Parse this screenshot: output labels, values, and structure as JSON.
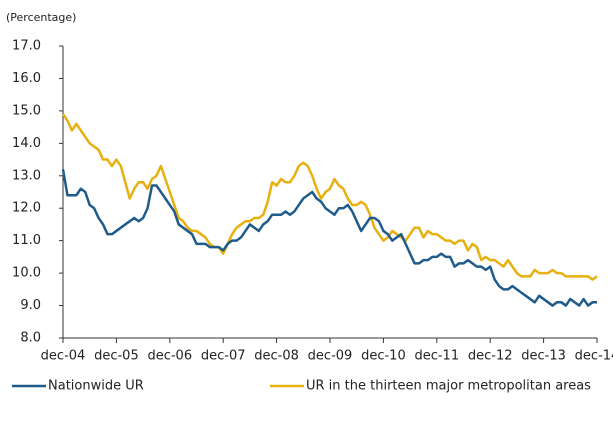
{
  "chart_data": {
    "type": "line",
    "y_label": "(Percentage)",
    "categories": [
      "dec-04",
      null,
      null,
      null,
      null,
      null,
      null,
      null,
      null,
      null,
      null,
      null,
      "dec-05",
      null,
      null,
      null,
      null,
      null,
      null,
      null,
      null,
      null,
      null,
      null,
      "dec-06",
      null,
      null,
      null,
      null,
      null,
      null,
      null,
      null,
      null,
      null,
      null,
      "dec-07",
      null,
      null,
      null,
      null,
      null,
      null,
      null,
      null,
      null,
      null,
      null,
      "dec-08",
      null,
      null,
      null,
      null,
      null,
      null,
      null,
      null,
      null,
      null,
      null,
      "dec-09",
      null,
      null,
      null,
      null,
      null,
      null,
      null,
      null,
      null,
      null,
      null,
      "dec-10",
      null,
      null,
      null,
      null,
      null,
      null,
      null,
      null,
      null,
      null,
      null,
      "dec-11",
      null,
      null,
      null,
      null,
      null,
      null,
      null,
      null,
      null,
      null,
      null,
      "dec-12",
      null,
      null,
      null,
      null,
      null,
      null,
      null,
      null,
      null,
      null,
      null,
      "dec-13",
      null,
      null,
      null,
      null,
      null,
      null,
      null,
      null,
      null,
      null,
      null,
      "dec-14"
    ],
    "series": [
      {
        "name": "Nationwide UR",
        "color": "#1f5c8b",
        "values": [
          13.2,
          12.4,
          12.4,
          12.4,
          12.6,
          12.5,
          12.1,
          12.0,
          11.7,
          11.5,
          11.2,
          11.2,
          11.3,
          11.4,
          11.5,
          11.6,
          11.7,
          11.6,
          11.7,
          12.0,
          12.7,
          12.7,
          12.5,
          12.3,
          12.1,
          11.9,
          11.5,
          11.4,
          11.3,
          11.2,
          10.9,
          10.9,
          10.9,
          10.8,
          10.8,
          10.8,
          10.7,
          10.9,
          11.0,
          11.0,
          11.1,
          11.3,
          11.5,
          11.4,
          11.3,
          11.5,
          11.6,
          11.8,
          11.8,
          11.8,
          11.9,
          11.8,
          11.9,
          12.1,
          12.3,
          12.4,
          12.5,
          12.3,
          12.2,
          12.0,
          11.9,
          11.8,
          12.0,
          12.0,
          12.1,
          11.9,
          11.6,
          11.3,
          11.5,
          11.7,
          11.7,
          11.6,
          11.3,
          11.2,
          11.0,
          11.1,
          11.2,
          10.9,
          10.6,
          10.3,
          10.3,
          10.4,
          10.4,
          10.5,
          10.5,
          10.6,
          10.5,
          10.5,
          10.2,
          10.3,
          10.3,
          10.4,
          10.3,
          10.2,
          10.2,
          10.1,
          10.2,
          9.8,
          9.6,
          9.5,
          9.5,
          9.6,
          9.5,
          9.4,
          9.3,
          9.2,
          9.1,
          9.3,
          9.2,
          9.1,
          9.0,
          9.1,
          9.1,
          9.0,
          9.2,
          9.1,
          9.0,
          9.2,
          9.0,
          9.1,
          9.1
        ]
      },
      {
        "name": "UR in the thirteen major metropolitan areas",
        "color": "#e8b00f",
        "values": [
          14.9,
          14.7,
          14.4,
          14.6,
          14.4,
          14.2,
          14.0,
          13.9,
          13.8,
          13.5,
          13.5,
          13.3,
          13.5,
          13.3,
          12.8,
          12.3,
          12.6,
          12.8,
          12.8,
          12.6,
          12.9,
          13.0,
          13.3,
          12.9,
          12.5,
          12.1,
          11.7,
          11.6,
          11.4,
          11.3,
          11.3,
          11.2,
          11.1,
          10.9,
          10.8,
          10.8,
          10.6,
          10.9,
          11.2,
          11.4,
          11.5,
          11.6,
          11.6,
          11.7,
          11.7,
          11.8,
          12.2,
          12.8,
          12.7,
          12.9,
          12.8,
          12.8,
          13.0,
          13.3,
          13.4,
          13.3,
          13.0,
          12.6,
          12.3,
          12.5,
          12.6,
          12.9,
          12.7,
          12.6,
          12.3,
          12.1,
          12.1,
          12.2,
          12.1,
          11.8,
          11.4,
          11.2,
          11.0,
          11.1,
          11.3,
          11.2,
          11.1,
          11.0,
          11.2,
          11.4,
          11.4,
          11.1,
          11.3,
          11.2,
          11.2,
          11.1,
          11.0,
          11.0,
          10.9,
          11.0,
          11.0,
          10.7,
          10.9,
          10.8,
          10.4,
          10.5,
          10.4,
          10.4,
          10.3,
          10.2,
          10.4,
          10.2,
          10.0,
          9.9,
          9.9,
          9.9,
          10.1,
          10.0,
          10.0,
          10.0,
          10.1,
          10.0,
          10.0,
          9.9,
          9.9,
          9.9,
          9.9,
          9.9,
          9.9,
          9.8,
          9.9
        ]
      }
    ],
    "ylim": [
      8,
      17
    ],
    "yticks": [
      {
        "value": 8,
        "label": "8.0"
      },
      {
        "value": 9,
        "label": "9.0"
      },
      {
        "value": 10,
        "label": "10.0"
      },
      {
        "value": 11,
        "label": "11.0"
      },
      {
        "value": 12,
        "label": "12.0"
      },
      {
        "value": 13,
        "label": "13.0"
      },
      {
        "value": 14,
        "label": "14.0"
      },
      {
        "value": 15,
        "label": "15.0"
      },
      {
        "value": 16,
        "label": "16.0"
      },
      {
        "value": 17,
        "label": "17.0"
      }
    ],
    "grid": false,
    "legend": "bottom"
  }
}
